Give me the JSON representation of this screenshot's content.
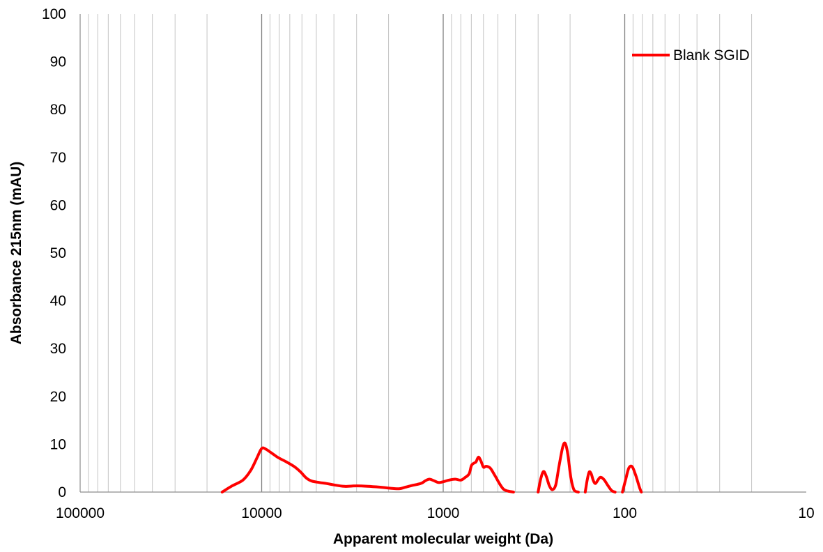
{
  "chart_data": {
    "type": "line",
    "title": "",
    "xlabel": "Apparent molecular weight (Da)",
    "ylabel": "Absorbance 215nm (mAU)",
    "x_scale": "log",
    "x_reversed": true,
    "xlim": [
      100000,
      10
    ],
    "ylim": [
      0,
      100
    ],
    "x_ticks": [
      "100000",
      "10000",
      "1000",
      "100",
      "10"
    ],
    "y_ticks": [
      "0",
      "10",
      "20",
      "30",
      "40",
      "50",
      "60",
      "70",
      "80",
      "90",
      "100"
    ],
    "grid": "vertical minor and major lines on log x axis",
    "legend_position": "top-right",
    "series": [
      {
        "name": "Blank SGID",
        "color": "#ff0000",
        "segments": [
          [
            [
              16500,
              0
            ],
            [
              14700,
              1.2
            ],
            [
              12700,
              2.5
            ],
            [
              11500,
              4.5
            ],
            [
              10600,
              7.2
            ],
            [
              10000,
              9.1
            ],
            [
              9500,
              9.0
            ],
            [
              8700,
              8
            ],
            [
              8100,
              7.2
            ],
            [
              7300,
              6.3
            ],
            [
              6600,
              5.3
            ],
            [
              6100,
              4.2
            ],
            [
              5700,
              3.0
            ],
            [
              5300,
              2.3
            ],
            [
              4800,
              2.0
            ],
            [
              4400,
              1.8
            ],
            [
              4000,
              1.5
            ],
            [
              3500,
              1.2
            ],
            [
              3000,
              1.3
            ],
            [
              2600,
              1.2
            ],
            [
              2200,
              1.0
            ],
            [
              1960,
              0.8
            ],
            [
              1750,
              0.7
            ],
            [
              1620,
              1.0
            ],
            [
              1480,
              1.4
            ],
            [
              1390,
              1.6
            ],
            [
              1310,
              1.9
            ],
            [
              1250,
              2.4
            ],
            [
              1190,
              2.7
            ],
            [
              1130,
              2.4
            ],
            [
              1060,
              2.0
            ],
            [
              990,
              2.2
            ],
            [
              930,
              2.5
            ],
            [
              860,
              2.7
            ],
            [
              800,
              2.5
            ],
            [
              760,
              3.0
            ],
            [
              720,
              3.8
            ],
            [
              700,
              5.5
            ],
            [
              680,
              6.0
            ],
            [
              660,
              6.3
            ],
            [
              640,
              7.3
            ],
            [
              620,
              6.5
            ],
            [
              600,
              5.2
            ],
            [
              580,
              5.4
            ],
            [
              550,
              5.0
            ],
            [
              520,
              3.5
            ],
            [
              490,
              1.8
            ],
            [
              465,
              0.6
            ],
            [
              440,
              0.2
            ],
            [
              410,
              0
            ]
          ],
          [
            [
              300,
              0
            ],
            [
              290,
              2.8
            ],
            [
              280,
              4.3
            ],
            [
              270,
              3.2
            ],
            [
              260,
              1.3
            ],
            [
              250,
              0.5
            ],
            [
              240,
              1.5
            ],
            [
              230,
              5.5
            ],
            [
              220,
              9.3
            ],
            [
              213,
              10.2
            ],
            [
              206,
              8.0
            ],
            [
              198,
              3.0
            ],
            [
              190,
              0.4
            ],
            [
              180,
              0
            ]
          ],
          [
            [
              165,
              0
            ],
            [
              161,
              2.5
            ],
            [
              157,
              4.2
            ],
            [
              153,
              3.8
            ],
            [
              149,
              2.4
            ],
            [
              145,
              1.8
            ],
            [
              140,
              2.6
            ],
            [
              136,
              3.1
            ],
            [
              130,
              2.6
            ],
            [
              124,
              1.4
            ],
            [
              118,
              0.3
            ],
            [
              113,
              0
            ]
          ],
          [
            [
              103,
              0
            ],
            [
              99,
              2.5
            ],
            [
              95,
              5.0
            ],
            [
              91,
              5.3
            ],
            [
              87,
              3.5
            ],
            [
              83,
              1.0
            ],
            [
              81,
              0
            ]
          ]
        ]
      }
    ]
  }
}
